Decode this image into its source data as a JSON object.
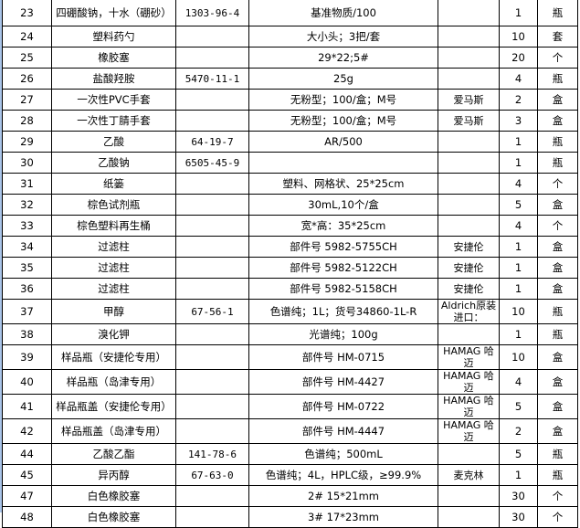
{
  "rows": [
    {
      "no": "23",
      "name": "四硼酸钠，十水（硼砂）",
      "cas": "1303-96-4",
      "spec": "基准物质/100",
      "brand": "",
      "qty": "1",
      "unit": "瓶"
    },
    {
      "no": "24",
      "name": "塑料药勺",
      "cas": "",
      "spec": "大小头；3把/套",
      "brand": "",
      "qty": "10",
      "unit": "套"
    },
    {
      "no": "25",
      "name": "橡胶塞",
      "cas": "",
      "spec": "29*22;5#",
      "brand": "",
      "qty": "20",
      "unit": "个"
    },
    {
      "no": "26",
      "name": "盐酸羟胺",
      "cas": "5470-11-1",
      "spec": "25g",
      "brand": "",
      "qty": "4",
      "unit": "瓶"
    },
    {
      "no": "27",
      "name": "一次性PVC手套",
      "cas": "",
      "spec": "无粉型；100/盒；M号",
      "brand": "爱马斯",
      "qty": "2",
      "unit": "盒"
    },
    {
      "no": "28",
      "name": "一次性丁腈手套",
      "cas": "",
      "spec": "无粉型；100/盒；M号",
      "brand": "爱马斯",
      "qty": "3",
      "unit": "盒"
    },
    {
      "no": "29",
      "name": "乙酸",
      "cas": "64-19-7",
      "spec": "AR/500",
      "brand": "",
      "qty": "1",
      "unit": "瓶"
    },
    {
      "no": "30",
      "name": "乙酸钠",
      "cas": "6505-45-9",
      "spec": "",
      "brand": "",
      "qty": "1",
      "unit": "瓶"
    },
    {
      "no": "31",
      "name": "纸篓",
      "cas": "",
      "spec": "塑料、网格状、25*25cm",
      "brand": "",
      "qty": "4",
      "unit": "个"
    },
    {
      "no": "32",
      "name": "棕色试剂瓶",
      "cas": "",
      "spec": "30mL,10个/盒",
      "brand": "",
      "qty": "5",
      "unit": "盒"
    },
    {
      "no": "33",
      "name": "棕色塑料再生桶",
      "cas": "",
      "spec": "宽*高：35*25cm",
      "brand": "",
      "qty": "4",
      "unit": "个"
    },
    {
      "no": "34",
      "name": "过滤柱",
      "cas": "",
      "spec": "部件号 5982-5755CH",
      "brand": "安捷伦",
      "qty": "1",
      "unit": "盒"
    },
    {
      "no": "35",
      "name": "过滤柱",
      "cas": "",
      "spec": "部件号 5982-5122CH",
      "brand": "安捷伦",
      "qty": "1",
      "unit": "盒"
    },
    {
      "no": "36",
      "name": "过滤柱",
      "cas": "",
      "spec": "部件号 5982-5158CH",
      "brand": "安捷伦",
      "qty": "1",
      "unit": "盒"
    },
    {
      "no": "37",
      "name": "甲醇",
      "cas": "67-56-1",
      "spec": "色谱纯；1L；货号34860-1L-R",
      "brand": "Aldrich原装进口：",
      "qty": "10",
      "unit": "瓶"
    },
    {
      "no": "38",
      "name": "溴化钾",
      "cas": "",
      "spec": "光谱纯；100g",
      "brand": "",
      "qty": "1",
      "unit": "瓶"
    },
    {
      "no": "39",
      "name": "样品瓶（安捷伦专用）",
      "cas": "",
      "spec": "部件号 HM-0715",
      "brand": "HAMAG 哈迈",
      "qty": "10",
      "unit": "盒"
    },
    {
      "no": "40",
      "name": "样品瓶（岛津专用）",
      "cas": "",
      "spec": "部件号 HM-4427",
      "brand": "HAMAG 哈迈",
      "qty": "4",
      "unit": "盒"
    },
    {
      "no": "41",
      "name": "样品瓶盖（安捷伦专用）",
      "cas": "",
      "spec": "部件号 HM-0722",
      "brand": "HAMAG 哈迈",
      "qty": "5",
      "unit": "盒"
    },
    {
      "no": "42",
      "name": "样品瓶盖（岛津专用）",
      "cas": "",
      "spec": "部件号 HM-4447",
      "brand": "HAMAG 哈迈",
      "qty": "2",
      "unit": "盒"
    },
    {
      "no": "44",
      "name": "乙酸乙酯",
      "cas": "141-78-6",
      "spec": "色谱纯；500mL",
      "brand": "",
      "qty": "5",
      "unit": "瓶"
    },
    {
      "no": "45",
      "name": "异丙醇",
      "cas": "67-63-0",
      "spec": "色谱纯；4L，HPLC级，≥99.9%",
      "brand": "麦克林",
      "qty": "1",
      "unit": "瓶"
    },
    {
      "no": "47",
      "name": "白色橡胶塞",
      "cas": "",
      "spec": "2# 15*21mm",
      "brand": "",
      "qty": "30",
      "unit": "个"
    },
    {
      "no": "48",
      "name": "白色橡胶塞",
      "cas": "",
      "spec": "3# 17*23mm",
      "brand": "",
      "qty": "30",
      "unit": "个"
    }
  ]
}
